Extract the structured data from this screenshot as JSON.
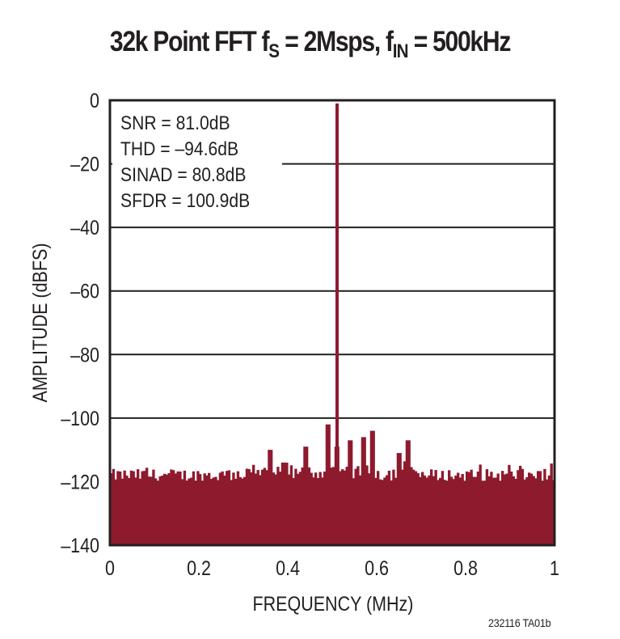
{
  "chart_data": {
    "type": "bar",
    "title": {
      "prefix": "32k Point FFT f",
      "sub1": "S",
      "mid": " = 2Msps, f",
      "sub2": "IN",
      "suffix": " = 500kHz"
    },
    "title_text": "32k Point FFT fS = 2Msps, fIN = 500kHz",
    "xlabel": "FREQUENCY (MHz)",
    "ylabel": "AMPLITUDE (dBFS)",
    "xlim": [
      0,
      1
    ],
    "ylim": [
      -140,
      0
    ],
    "xticks": [
      0,
      0.2,
      0.4,
      0.6,
      0.8,
      1
    ],
    "xtick_labels": [
      "0",
      "0.2",
      "0.4",
      "0.6",
      "0.8",
      "1"
    ],
    "yticks": [
      0,
      -20,
      -40,
      -60,
      -80,
      -100,
      -120,
      -140
    ],
    "ytick_labels": [
      "0",
      "–20",
      "–40",
      "–60",
      "–80",
      "–100",
      "–120",
      "–140"
    ],
    "grid": "horizontal",
    "annotations": [
      "SNR = 81.0dB",
      "THD = –94.6dB",
      "SINAD = 80.8dB",
      "SFDR = 100.9dB"
    ],
    "fundamental": {
      "frequency_mhz": 0.5,
      "amplitude_dbfs": -1
    },
    "noise_floor_dbfs": -118,
    "spurs": [
      {
        "frequency_mhz": 0.36,
        "amplitude_dbfs": -110
      },
      {
        "frequency_mhz": 0.39,
        "amplitude_dbfs": -114
      },
      {
        "frequency_mhz": 0.44,
        "amplitude_dbfs": -109
      },
      {
        "frequency_mhz": 0.49,
        "amplitude_dbfs": -102
      },
      {
        "frequency_mhz": 0.51,
        "amplitude_dbfs": -109
      },
      {
        "frequency_mhz": 0.54,
        "amplitude_dbfs": -107
      },
      {
        "frequency_mhz": 0.57,
        "amplitude_dbfs": -106
      },
      {
        "frequency_mhz": 0.59,
        "amplitude_dbfs": -104
      },
      {
        "frequency_mhz": 0.65,
        "amplitude_dbfs": -111
      },
      {
        "frequency_mhz": 0.67,
        "amplitude_dbfs": -107
      }
    ],
    "bar_color": "#8e1a2e",
    "frame_color": "#231f20"
  },
  "footnote": "232116 TA01b"
}
